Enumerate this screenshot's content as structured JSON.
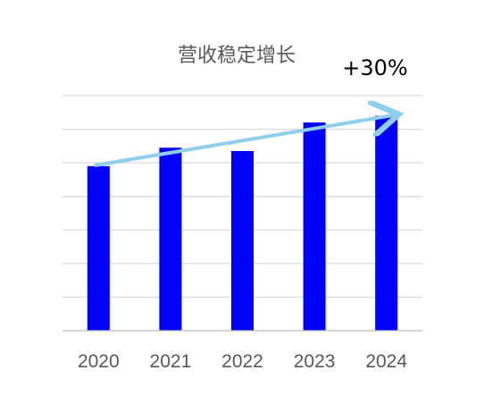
{
  "chart_data": {
    "type": "bar",
    "title": "营收稳定增长",
    "annotation": "+30%",
    "categories": [
      "2020",
      "2021",
      "2022",
      "2023",
      "2024"
    ],
    "values": [
      4.9,
      5.45,
      5.35,
      6.2,
      6.4
    ],
    "ylim": [
      0,
      7
    ],
    "grid": true,
    "legend": "none",
    "colors": {
      "bar": "#0000FF",
      "trend_arrow": "#8ECFEF",
      "grid": "#D9D9D9",
      "axis": "#BFBFBF",
      "text": "#595959",
      "annotation": "#000000"
    }
  }
}
